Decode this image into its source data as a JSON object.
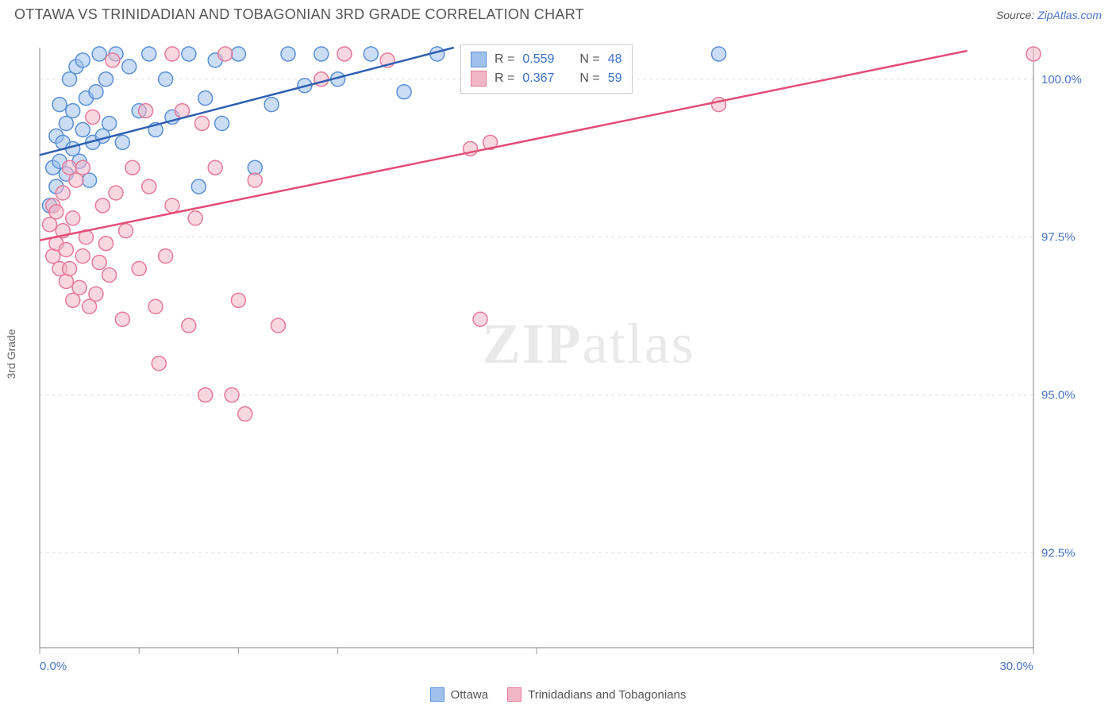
{
  "header": {
    "title": "OTTAWA VS TRINIDADIAN AND TOBAGONIAN 3RD GRADE CORRELATION CHART",
    "source_prefix": "Source: ",
    "source_link_text": "ZipAtlas.com"
  },
  "watermark": {
    "zip": "ZIP",
    "atlas": "atlas"
  },
  "chart": {
    "type": "scatter-with-regression",
    "y_axis_title": "3rd Grade",
    "xlim": [
      0.0,
      30.0
    ],
    "ylim": [
      91.0,
      100.5
    ],
    "x_ticks": [
      0.0,
      3.0,
      6.0,
      9.0,
      15.0,
      30.0
    ],
    "x_tick_labels": {
      "0": "0.0%",
      "30": "30.0%"
    },
    "y_ticks": [
      92.5,
      95.0,
      97.5,
      100.0
    ],
    "y_tick_labels": [
      "92.5%",
      "95.0%",
      "97.5%",
      "100.0%"
    ],
    "grid_color": "#e0e0e0",
    "axis_color": "#999999",
    "tick_label_color": "#4a73c4",
    "tick_label_fontsize": 15,
    "background_color": "#ffffff",
    "marker_radius": 9,
    "marker_stroke_width": 1.5,
    "line_width": 2.5,
    "series": [
      {
        "name": "Ottawa",
        "fill": "#9fc1ec",
        "stroke": "#5a8fd6",
        "fill_opacity": 0.55,
        "line_color": "#2f5fb0",
        "R": 0.559,
        "N": 48,
        "regression": {
          "x1": 0.0,
          "y1": 98.8,
          "x2": 12.5,
          "y2": 100.5
        },
        "points": [
          [
            0.3,
            98.0
          ],
          [
            0.4,
            98.6
          ],
          [
            0.5,
            99.1
          ],
          [
            0.5,
            98.3
          ],
          [
            0.6,
            99.6
          ],
          [
            0.6,
            98.7
          ],
          [
            0.7,
            99.0
          ],
          [
            0.8,
            98.5
          ],
          [
            0.8,
            99.3
          ],
          [
            0.9,
            100.0
          ],
          [
            1.0,
            98.9
          ],
          [
            1.0,
            99.5
          ],
          [
            1.1,
            100.2
          ],
          [
            1.2,
            98.7
          ],
          [
            1.3,
            99.2
          ],
          [
            1.3,
            100.3
          ],
          [
            1.4,
            99.7
          ],
          [
            1.5,
            98.4
          ],
          [
            1.6,
            99.0
          ],
          [
            1.7,
            99.8
          ],
          [
            1.8,
            100.4
          ],
          [
            1.9,
            99.1
          ],
          [
            2.0,
            100.0
          ],
          [
            2.1,
            99.3
          ],
          [
            2.3,
            100.4
          ],
          [
            2.5,
            99.0
          ],
          [
            2.7,
            100.2
          ],
          [
            3.0,
            99.5
          ],
          [
            3.3,
            100.4
          ],
          [
            3.5,
            99.2
          ],
          [
            3.8,
            100.0
          ],
          [
            4.0,
            99.4
          ],
          [
            4.5,
            100.4
          ],
          [
            4.8,
            98.3
          ],
          [
            5.0,
            99.7
          ],
          [
            5.3,
            100.3
          ],
          [
            5.5,
            99.3
          ],
          [
            6.0,
            100.4
          ],
          [
            6.5,
            98.6
          ],
          [
            7.0,
            99.6
          ],
          [
            7.5,
            100.4
          ],
          [
            8.0,
            99.9
          ],
          [
            8.5,
            100.4
          ],
          [
            9.0,
            100.0
          ],
          [
            10.0,
            100.4
          ],
          [
            11.0,
            99.8
          ],
          [
            12.0,
            100.4
          ],
          [
            20.5,
            100.4
          ]
        ]
      },
      {
        "name": "Trinidadians and Tobagonians",
        "fill": "#f2b7c6",
        "stroke": "#e67a98",
        "fill_opacity": 0.55,
        "line_color": "#e34d77",
        "R": 0.367,
        "N": 59,
        "regression": {
          "x1": 0.0,
          "y1": 97.45,
          "x2": 28.0,
          "y2": 100.45
        },
        "points": [
          [
            0.3,
            97.7
          ],
          [
            0.4,
            97.2
          ],
          [
            0.4,
            98.0
          ],
          [
            0.5,
            97.9
          ],
          [
            0.5,
            97.4
          ],
          [
            0.6,
            97.0
          ],
          [
            0.7,
            98.2
          ],
          [
            0.7,
            97.6
          ],
          [
            0.8,
            96.8
          ],
          [
            0.8,
            97.3
          ],
          [
            0.9,
            97.0
          ],
          [
            0.9,
            98.6
          ],
          [
            1.0,
            96.5
          ],
          [
            1.0,
            97.8
          ],
          [
            1.1,
            98.4
          ],
          [
            1.2,
            96.7
          ],
          [
            1.3,
            97.2
          ],
          [
            1.3,
            98.6
          ],
          [
            1.4,
            97.5
          ],
          [
            1.5,
            96.4
          ],
          [
            1.6,
            99.4
          ],
          [
            1.7,
            96.6
          ],
          [
            1.8,
            97.1
          ],
          [
            1.9,
            98.0
          ],
          [
            2.0,
            97.4
          ],
          [
            2.1,
            96.9
          ],
          [
            2.2,
            100.3
          ],
          [
            2.3,
            98.2
          ],
          [
            2.5,
            96.2
          ],
          [
            2.6,
            97.6
          ],
          [
            2.8,
            98.6
          ],
          [
            3.0,
            97.0
          ],
          [
            3.2,
            99.5
          ],
          [
            3.3,
            98.3
          ],
          [
            3.5,
            96.4
          ],
          [
            3.6,
            95.5
          ],
          [
            3.8,
            97.2
          ],
          [
            4.0,
            100.4
          ],
          [
            4.0,
            98.0
          ],
          [
            4.3,
            99.5
          ],
          [
            4.5,
            96.1
          ],
          [
            4.7,
            97.8
          ],
          [
            4.9,
            99.3
          ],
          [
            5.0,
            95.0
          ],
          [
            5.3,
            98.6
          ],
          [
            5.6,
            100.4
          ],
          [
            5.8,
            95.0
          ],
          [
            6.0,
            96.5
          ],
          [
            6.2,
            94.7
          ],
          [
            6.5,
            98.4
          ],
          [
            7.2,
            96.1
          ],
          [
            8.5,
            100.0
          ],
          [
            9.2,
            100.4
          ],
          [
            10.5,
            100.3
          ],
          [
            13.0,
            98.9
          ],
          [
            13.3,
            96.2
          ],
          [
            13.6,
            99.0
          ],
          [
            20.5,
            99.6
          ],
          [
            30.0,
            100.4
          ]
        ]
      }
    ]
  },
  "top_legend": {
    "rows": [
      {
        "swatch_fill": "#9fc1ec",
        "swatch_stroke": "#5a8fd6",
        "r_label": "R =",
        "r_value": "0.559",
        "n_label": "N =",
        "n_value": "48"
      },
      {
        "swatch_fill": "#f2b7c6",
        "swatch_stroke": "#e67a98",
        "r_label": "R =",
        "r_value": "0.367",
        "n_label": "N =",
        "n_value": "59"
      }
    ]
  },
  "bottom_legend": {
    "items": [
      {
        "label": "Ottawa",
        "swatch_fill": "#9fc1ec",
        "swatch_stroke": "#5a8fd6"
      },
      {
        "label": "Trinidadians and Tobagonians",
        "swatch_fill": "#f2b7c6",
        "swatch_stroke": "#e67a98"
      }
    ]
  }
}
